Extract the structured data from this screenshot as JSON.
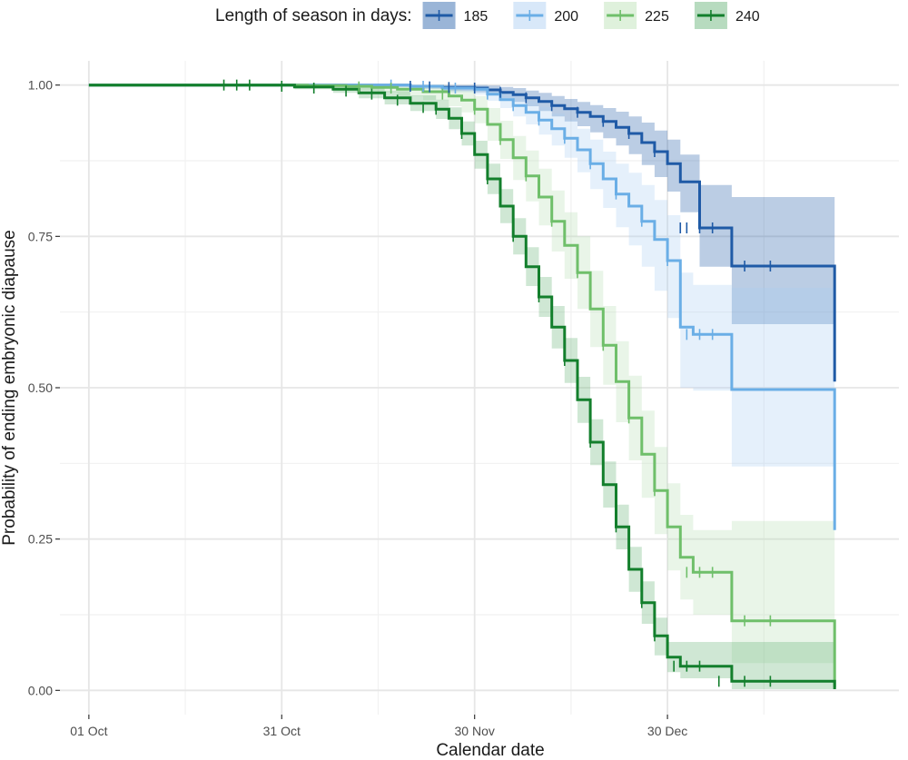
{
  "chart_data": {
    "type": "line",
    "subtype": "survival-step-with-confidence-bands",
    "xlabel": "Calendar date",
    "ylabel": "Probability of ending embryonic diapause",
    "x_ticks": [
      {
        "label": "01 Oct",
        "value": 0
      },
      {
        "label": "31 Oct",
        "value": 30
      },
      {
        "label": "30 Nov",
        "value": 60
      },
      {
        "label": "30 Dec",
        "value": 90
      }
    ],
    "y_ticks": [
      {
        "label": "0.00",
        "value": 0
      },
      {
        "label": "0.25",
        "value": 0.25
      },
      {
        "label": "0.50",
        "value": 0.5
      },
      {
        "label": "0.75",
        "value": 0.75
      },
      {
        "label": "1.00",
        "value": 1
      }
    ],
    "xlim": [
      -4.5,
      126
    ],
    "ylim": [
      -0.04,
      1.04
    ],
    "grid": true,
    "legend": {
      "title": "Length of season in days:",
      "position": "top"
    },
    "series": [
      {
        "name": "185",
        "color": "#1f5aa6",
        "band_color": "#1f5aa6",
        "x": [
          0,
          45,
          50,
          55,
          60,
          62,
          64,
          66,
          68,
          70,
          72,
          74,
          76,
          78,
          80,
          82,
          84,
          86,
          88,
          90,
          92,
          95,
          100,
          110,
          116,
          116
        ],
        "y": [
          1,
          1,
          0.998,
          0.996,
          0.995,
          0.992,
          0.988,
          0.984,
          0.979,
          0.973,
          0.966,
          0.961,
          0.955,
          0.948,
          0.94,
          0.93,
          0.92,
          0.905,
          0.89,
          0.87,
          0.84,
          0.764,
          0.701,
          0.701,
          0.701,
          0.51
        ],
        "lower": [
          1,
          1,
          0.994,
          0.99,
          0.988,
          0.984,
          0.978,
          0.972,
          0.965,
          0.957,
          0.948,
          0.94,
          0.932,
          0.922,
          0.912,
          0.9,
          0.886,
          0.868,
          0.848,
          0.824,
          0.79,
          0.7,
          0.605,
          0.605,
          0.605,
          0.605
        ],
        "upper": [
          1,
          1,
          1,
          1,
          1,
          0.999,
          0.997,
          0.995,
          0.991,
          0.987,
          0.982,
          0.977,
          0.972,
          0.967,
          0.962,
          0.956,
          0.948,
          0.938,
          0.925,
          0.91,
          0.885,
          0.835,
          0.815,
          0.815,
          0.815,
          0.815
        ],
        "censor_x": [
          50,
          53,
          56,
          60,
          64,
          68,
          72,
          76,
          80,
          84,
          88,
          92,
          93,
          95,
          97,
          102,
          106
        ],
        "censor_y": [
          0.998,
          0.997,
          0.996,
          0.995,
          0.988,
          0.979,
          0.966,
          0.955,
          0.94,
          0.92,
          0.89,
          0.764,
          0.764,
          0.764,
          0.764,
          0.701,
          0.701
        ]
      },
      {
        "name": "200",
        "color": "#6aaee6",
        "band_color": "#a9cdf2",
        "x": [
          0,
          45,
          50,
          55,
          60,
          62,
          64,
          66,
          68,
          70,
          72,
          74,
          76,
          78,
          80,
          82,
          84,
          86,
          88,
          90,
          92,
          94,
          96,
          100,
          110,
          116,
          116
        ],
        "y": [
          1,
          1,
          0.998,
          0.995,
          0.993,
          0.985,
          0.976,
          0.966,
          0.955,
          0.942,
          0.928,
          0.912,
          0.893,
          0.87,
          0.845,
          0.82,
          0.8,
          0.775,
          0.745,
          0.71,
          0.6,
          0.588,
          0.588,
          0.497,
          0.497,
          0.497,
          0.265
        ],
        "lower": [
          1,
          1,
          0.994,
          0.988,
          0.984,
          0.974,
          0.962,
          0.948,
          0.935,
          0.918,
          0.9,
          0.88,
          0.856,
          0.828,
          0.797,
          0.765,
          0.735,
          0.7,
          0.66,
          0.615,
          0.5,
          0.495,
          0.495,
          0.37,
          0.37,
          0.37,
          0.37
        ],
        "upper": [
          1,
          1,
          1,
          1,
          0.999,
          0.994,
          0.988,
          0.982,
          0.974,
          0.964,
          0.953,
          0.942,
          0.928,
          0.91,
          0.89,
          0.87,
          0.855,
          0.835,
          0.81,
          0.785,
          0.69,
          0.67,
          0.67,
          0.665,
          0.665,
          0.665,
          0.665
        ],
        "censor_x": [
          47,
          52,
          57,
          62,
          66,
          70,
          74,
          78,
          82,
          86,
          90,
          93,
          95,
          97
        ],
        "censor_y": [
          1,
          0.998,
          0.995,
          0.985,
          0.966,
          0.942,
          0.912,
          0.87,
          0.82,
          0.775,
          0.71,
          0.588,
          0.588,
          0.588
        ]
      },
      {
        "name": "225",
        "color": "#6fbf6a",
        "band_color": "#b7dfb2",
        "x": [
          0,
          28,
          34,
          40,
          44,
          48,
          52,
          56,
          58,
          60,
          62,
          64,
          66,
          68,
          70,
          72,
          74,
          76,
          78,
          80,
          82,
          84,
          86,
          88,
          90,
          92,
          94,
          96,
          100,
          110,
          116,
          116
        ],
        "y": [
          1,
          1,
          0.999,
          0.998,
          0.996,
          0.993,
          0.989,
          0.982,
          0.975,
          0.96,
          0.935,
          0.91,
          0.88,
          0.85,
          0.815,
          0.775,
          0.735,
          0.69,
          0.63,
          0.57,
          0.51,
          0.45,
          0.39,
          0.33,
          0.27,
          0.22,
          0.195,
          0.195,
          0.115,
          0.115,
          0.115,
          0.005
        ],
        "lower": [
          1,
          1,
          0.995,
          0.992,
          0.988,
          0.982,
          0.975,
          0.965,
          0.955,
          0.937,
          0.908,
          0.878,
          0.843,
          0.808,
          0.768,
          0.725,
          0.68,
          0.63,
          0.567,
          0.505,
          0.443,
          0.38,
          0.318,
          0.258,
          0.198,
          0.15,
          0.125,
          0.125,
          0.045,
          0.045,
          0.045,
          0.045
        ],
        "upper": [
          1,
          1,
          1,
          1,
          1,
          1,
          0.999,
          0.996,
          0.991,
          0.982,
          0.962,
          0.941,
          0.916,
          0.892,
          0.862,
          0.826,
          0.79,
          0.75,
          0.693,
          0.635,
          0.577,
          0.52,
          0.462,
          0.402,
          0.342,
          0.29,
          0.265,
          0.265,
          0.28,
          0.28,
          0.28,
          0.28
        ],
        "censor_x": [
          42,
          47,
          55,
          60,
          64,
          68,
          72,
          76,
          80,
          84,
          88,
          93,
          95,
          97,
          102,
          106
        ],
        "censor_y": [
          0.997,
          0.995,
          0.985,
          0.96,
          0.91,
          0.85,
          0.775,
          0.69,
          0.57,
          0.45,
          0.33,
          0.195,
          0.195,
          0.195,
          0.115,
          0.115
        ]
      },
      {
        "name": "240",
        "color": "#137f2c",
        "band_color": "#5fb070",
        "x": [
          0,
          26,
          32,
          38,
          42,
          46,
          50,
          54,
          56,
          58,
          60,
          62,
          64,
          66,
          68,
          70,
          72,
          74,
          76,
          78,
          80,
          82,
          84,
          86,
          88,
          90,
          92,
          94,
          96,
          100,
          110,
          116,
          116
        ],
        "y": [
          1,
          1,
          0.997,
          0.993,
          0.987,
          0.979,
          0.97,
          0.96,
          0.945,
          0.92,
          0.885,
          0.845,
          0.8,
          0.75,
          0.7,
          0.65,
          0.6,
          0.545,
          0.48,
          0.41,
          0.34,
          0.27,
          0.2,
          0.145,
          0.09,
          0.055,
          0.04,
          0.04,
          0.04,
          0.015,
          0.015,
          0.015,
          0.002
        ],
        "lower": [
          1,
          1,
          0.993,
          0.987,
          0.978,
          0.968,
          0.957,
          0.944,
          0.927,
          0.9,
          0.862,
          0.82,
          0.772,
          0.72,
          0.668,
          0.617,
          0.565,
          0.508,
          0.442,
          0.372,
          0.302,
          0.233,
          0.163,
          0.11,
          0.058,
          0.03,
          0.02,
          0.02,
          0.02,
          0.002,
          0.002,
          0.002,
          0.002
        ],
        "upper": [
          1,
          1,
          1,
          0.999,
          0.996,
          0.99,
          0.983,
          0.976,
          0.963,
          0.94,
          0.908,
          0.87,
          0.828,
          0.78,
          0.732,
          0.683,
          0.635,
          0.582,
          0.518,
          0.448,
          0.378,
          0.307,
          0.237,
          0.18,
          0.12,
          0.08,
          0.08,
          0.08,
          0.08,
          0.08,
          0.08,
          0.08,
          0.08
        ],
        "censor_x": [
          21,
          23,
          25,
          30,
          35,
          40,
          44,
          48,
          52,
          54,
          58,
          62,
          66,
          70,
          74,
          78,
          82,
          86,
          88,
          91,
          93,
          95,
          98,
          102,
          106
        ],
        "censor_y": [
          1,
          1,
          1,
          0.998,
          0.995,
          0.99,
          0.985,
          0.975,
          0.963,
          0.96,
          0.92,
          0.845,
          0.75,
          0.65,
          0.545,
          0.41,
          0.27,
          0.145,
          0.09,
          0.04,
          0.04,
          0.04,
          0.015,
          0.015,
          0.015
        ]
      }
    ]
  }
}
